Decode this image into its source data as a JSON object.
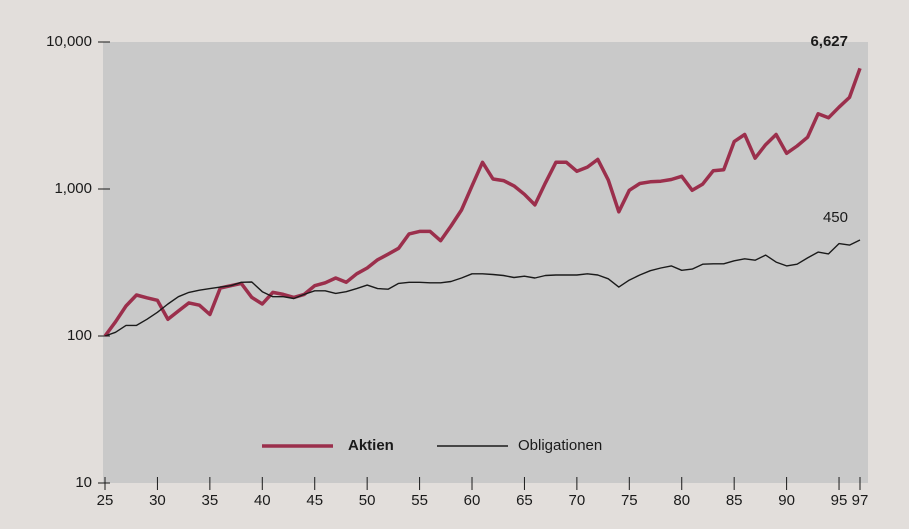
{
  "chart_data": {
    "type": "line",
    "log_scale": true,
    "legend": "lower center",
    "x": [
      25,
      26,
      27,
      28,
      29,
      30,
      31,
      32,
      33,
      34,
      35,
      36,
      37,
      38,
      39,
      40,
      41,
      42,
      43,
      44,
      45,
      46,
      47,
      48,
      49,
      50,
      51,
      52,
      53,
      54,
      55,
      56,
      57,
      58,
      59,
      60,
      61,
      62,
      63,
      64,
      65,
      66,
      67,
      68,
      69,
      70,
      71,
      72,
      73,
      74,
      75,
      76,
      77,
      78,
      79,
      80,
      81,
      82,
      83,
      84,
      85,
      86,
      87,
      88,
      89,
      90,
      91,
      92,
      93,
      94,
      95,
      96,
      97
    ],
    "xlim": [
      25,
      97
    ],
    "xticks": [
      25,
      30,
      35,
      40,
      45,
      50,
      55,
      60,
      65,
      70,
      75,
      80,
      85,
      90,
      95,
      97
    ],
    "ylim": [
      10,
      10000
    ],
    "yticks": [
      10,
      100,
      {
        "value": 1000,
        "label": "1,000"
      },
      {
        "value": 10000,
        "label": "10,000"
      }
    ],
    "series": [
      {
        "name": "Aktien",
        "color": "#9b2f4c",
        "values": [
          100,
          125,
          160,
          190,
          182,
          175,
          130,
          148,
          168,
          162,
          140,
          212,
          220,
          228,
          183,
          165,
          198,
          192,
          183,
          192,
          220,
          230,
          248,
          232,
          265,
          290,
          330,
          360,
          395,
          495,
          515,
          515,
          445,
          560,
          720,
          1050,
          1520,
          1170,
          1140,
          1050,
          920,
          780,
          1100,
          1520,
          1520,
          1320,
          1410,
          1590,
          1150,
          700,
          980,
          1090,
          1120,
          1130,
          1160,
          1220,
          980,
          1080,
          1330,
          1350,
          2100,
          2350,
          1620,
          2000,
          2350,
          1750,
          1960,
          2250,
          3250,
          3050,
          3600,
          4200,
          6627
        ]
      },
      {
        "name": "Obligationen",
        "color": "#1a1a1a",
        "values": [
          100,
          106,
          118,
          118,
          130,
          145,
          165,
          185,
          198,
          205,
          210,
          215,
          220,
          232,
          233,
          200,
          185,
          185,
          180,
          192,
          203,
          203,
          195,
          200,
          210,
          222,
          210,
          208,
          228,
          232,
          232,
          230,
          230,
          235,
          248,
          265,
          265,
          262,
          258,
          250,
          255,
          248,
          258,
          260,
          260,
          260,
          265,
          260,
          245,
          215,
          240,
          260,
          278,
          290,
          300,
          280,
          285,
          308,
          310,
          310,
          325,
          335,
          328,
          355,
          318,
          300,
          308,
          340,
          372,
          362,
          425,
          415,
          450
        ]
      }
    ],
    "annotations": [
      {
        "text": "6,627",
        "x": 97,
        "y": 6627,
        "color": "#9b2f4c"
      },
      {
        "text": "450",
        "x": 97,
        "y": 450,
        "color": "#1a1a1a"
      }
    ]
  }
}
